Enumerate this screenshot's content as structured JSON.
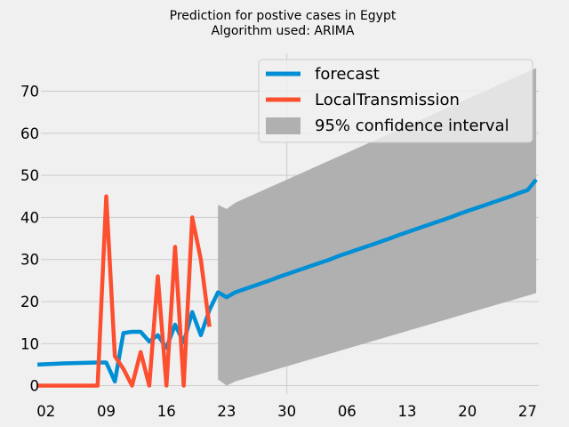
{
  "chart_data": {
    "type": "line",
    "title": "Prediction for postive cases in Egypt",
    "subtitle": "Algorithm used: ARIMA",
    "xlabel": "",
    "ylabel": "",
    "x_ticks": [
      "02",
      "09",
      "16",
      "23",
      "30",
      "06",
      "13",
      "20",
      "27"
    ],
    "y_ticks": [
      0,
      10,
      20,
      30,
      40,
      50,
      60,
      70
    ],
    "xlim": [
      1.4,
      59.3
    ],
    "ylim": [
      -2,
      79
    ],
    "grid": true,
    "legend_position": "top-right",
    "series": [
      {
        "name": "forecast",
        "color": "#008fd5",
        "x": [
          1,
          2,
          3,
          4,
          5,
          6,
          7,
          8,
          9,
          10,
          11,
          12,
          13,
          14,
          15,
          16,
          17,
          18,
          19,
          20,
          21,
          22,
          23,
          24,
          25,
          26,
          27,
          28,
          29,
          30,
          31,
          32,
          33,
          34,
          35,
          36,
          37,
          38,
          39,
          40,
          41,
          42,
          43,
          44,
          45,
          46,
          47,
          48,
          49,
          50,
          51,
          52,
          53,
          54,
          55,
          56,
          57,
          58,
          59
        ],
        "values": [
          5,
          5.1,
          5.2,
          5.3,
          5.35,
          5.4,
          5.45,
          5.5,
          5.5,
          1,
          12.5,
          12.8,
          12.8,
          10.5,
          12,
          9,
          14.5,
          10.3,
          17.5,
          12,
          18,
          22.2,
          21,
          22.2,
          22.9,
          23.6,
          24.3,
          25,
          25.8,
          26.5,
          27.2,
          27.9,
          28.6,
          29.3,
          30,
          30.8,
          31.5,
          32.2,
          32.9,
          33.6,
          34.3,
          35,
          35.8,
          36.5,
          37.2,
          37.9,
          38.6,
          39.3,
          40,
          40.8,
          41.5,
          42.2,
          42.9,
          43.6,
          44.3,
          45,
          45.8,
          46.5,
          49
        ]
      },
      {
        "name": "LocalTransmission",
        "color": "#fc4f30",
        "x": [
          1,
          2,
          3,
          4,
          5,
          6,
          7,
          8,
          9,
          10,
          11,
          12,
          13,
          14,
          15,
          16,
          17,
          18,
          19,
          20,
          21
        ],
        "values": [
          0,
          0,
          0,
          0,
          0,
          0,
          0,
          0,
          45,
          7,
          4,
          0,
          8,
          0,
          26,
          0,
          33,
          0,
          40,
          30,
          14
        ]
      }
    ],
    "confidence_interval": {
      "name": "95% confidence interval",
      "color": "#b0b0b0",
      "x": [
        22,
        23,
        24,
        59
      ],
      "lower": [
        1.5,
        0,
        1,
        22
      ],
      "upper": [
        43,
        42,
        43.5,
        75.5
      ]
    }
  }
}
